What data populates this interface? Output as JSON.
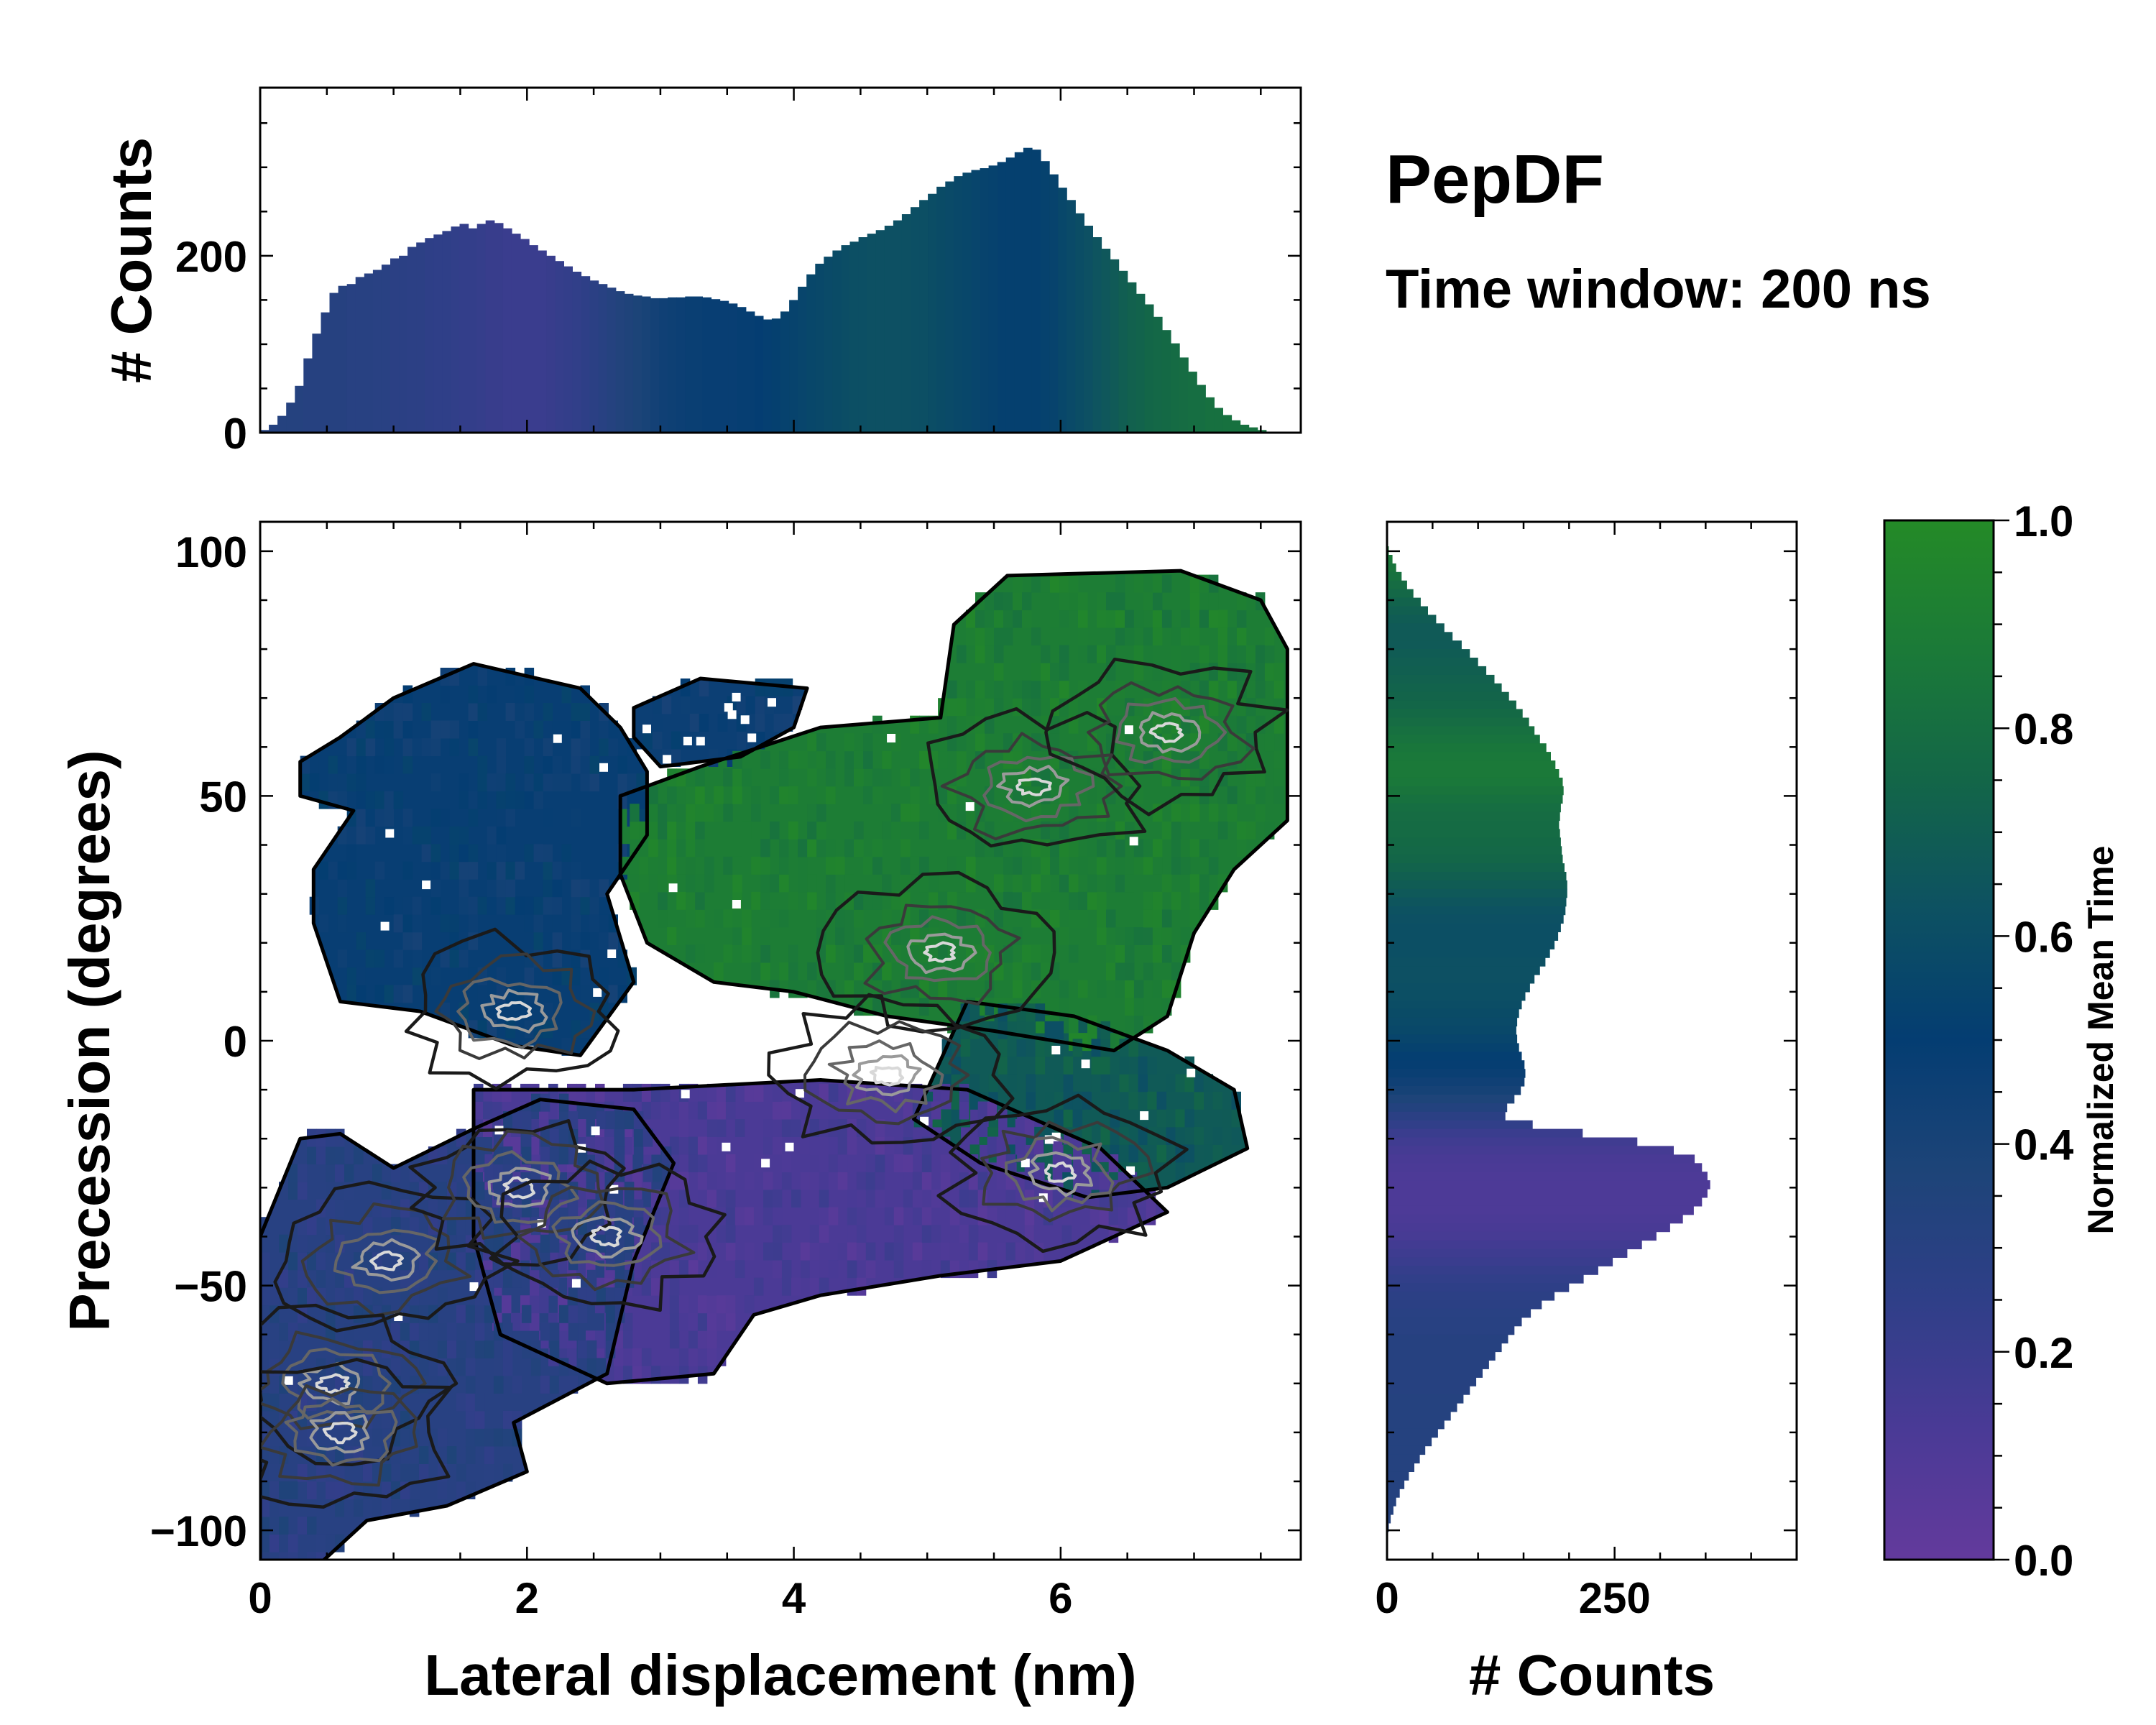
{
  "chart_data": {
    "type": "joint-histogram",
    "title": "PepDF",
    "subtitle": "Time window: 200 ns",
    "colors": {
      "cmap": [
        "#633a9c",
        "#4a3a96",
        "#2f3f88",
        "#1d4478",
        "#043d72",
        "#0d5162",
        "#136648",
        "#1b7a38",
        "#248a27"
      ]
    },
    "main": {
      "type": "2d-histogram",
      "xlabel": "Lateral displacement (nm)",
      "ylabel": "Precession (degrees)",
      "xlim": [
        0,
        7.8
      ],
      "ylim": [
        -106,
        106
      ],
      "xticks": [
        {
          "v": 0,
          "t": "0"
        },
        {
          "v": 2,
          "t": "2"
        },
        {
          "v": 4,
          "t": "4"
        },
        {
          "v": 6,
          "t": "6"
        }
      ],
      "yticks": [
        {
          "v": 100,
          "t": "100"
        },
        {
          "v": 50,
          "t": "50"
        },
        {
          "v": 0,
          "t": "0"
        },
        {
          "v": -50,
          "t": "−50"
        },
        {
          "v": -100,
          "t": "−100"
        }
      ],
      "regions": [
        {
          "name": "blue-upper-left",
          "value": 0.48,
          "polygon": [
            [
              0.3,
              57
            ],
            [
              0.6,
              62
            ],
            [
              1.0,
              70
            ],
            [
              1.6,
              77
            ],
            [
              2.4,
              72
            ],
            [
              2.7,
              64
            ],
            [
              2.9,
              55
            ],
            [
              2.9,
              42
            ],
            [
              2.6,
              30
            ],
            [
              2.8,
              12
            ],
            [
              2.4,
              -3
            ],
            [
              1.9,
              -1
            ],
            [
              1.2,
              6
            ],
            [
              0.6,
              8
            ],
            [
              0.4,
              24
            ],
            [
              0.4,
              35
            ],
            [
              0.7,
              47
            ],
            [
              0.3,
              50
            ]
          ]
        },
        {
          "name": "blue-top-patch",
          "value": 0.46,
          "polygon": [
            [
              2.8,
              68
            ],
            [
              3.3,
              74
            ],
            [
              4.1,
              72
            ],
            [
              4.0,
              64
            ],
            [
              3.6,
              58
            ],
            [
              3.0,
              56
            ],
            [
              2.8,
              62
            ]
          ]
        },
        {
          "name": "green-central",
          "value": 0.9,
          "polygon": [
            [
              2.7,
              50
            ],
            [
              3.3,
              56
            ],
            [
              4.2,
              64
            ],
            [
              5.1,
              66
            ],
            [
              5.2,
              85
            ],
            [
              5.6,
              95
            ],
            [
              6.9,
              96
            ],
            [
              7.5,
              90
            ],
            [
              7.7,
              80
            ],
            [
              7.7,
              45
            ],
            [
              7.3,
              35
            ],
            [
              7.0,
              22
            ],
            [
              6.8,
              5
            ],
            [
              6.4,
              -2
            ],
            [
              5.5,
              2
            ],
            [
              4.7,
              5
            ],
            [
              4.0,
              10
            ],
            [
              3.4,
              12
            ],
            [
              2.9,
              20
            ],
            [
              2.7,
              34
            ]
          ]
        },
        {
          "name": "teal-right",
          "value": 0.68,
          "polygon": [
            [
              5.3,
              8
            ],
            [
              6.1,
              5
            ],
            [
              6.8,
              -2
            ],
            [
              7.3,
              -10
            ],
            [
              7.4,
              -22
            ],
            [
              6.8,
              -30
            ],
            [
              6.2,
              -32
            ],
            [
              5.4,
              -25
            ],
            [
              4.9,
              -16
            ],
            [
              5.1,
              -4
            ]
          ]
        },
        {
          "name": "purple-band",
          "value": 0.12,
          "polygon": [
            [
              1.6,
              -10
            ],
            [
              2.8,
              -10
            ],
            [
              4.2,
              -8
            ],
            [
              5.3,
              -10
            ],
            [
              6.3,
              -22
            ],
            [
              6.8,
              -35
            ],
            [
              6.0,
              -45
            ],
            [
              5.1,
              -48
            ],
            [
              4.2,
              -52
            ],
            [
              3.7,
              -56
            ],
            [
              3.4,
              -68
            ],
            [
              2.6,
              -70
            ],
            [
              1.8,
              -60
            ],
            [
              1.6,
              -40
            ]
          ]
        },
        {
          "name": "navy-lower-left",
          "value": 0.3,
          "polygon": [
            [
              0.3,
              -20
            ],
            [
              0.6,
              -19
            ],
            [
              1.0,
              -26
            ],
            [
              1.6,
              -18
            ],
            [
              2.1,
              -12
            ],
            [
              2.8,
              -14
            ],
            [
              3.1,
              -25
            ],
            [
              2.8,
              -45
            ],
            [
              2.6,
              -68
            ],
            [
              1.9,
              -78
            ],
            [
              2.0,
              -88
            ],
            [
              1.4,
              -95
            ],
            [
              0.8,
              -98
            ],
            [
              0.4,
              -108
            ],
            [
              0,
              -108
            ],
            [
              0,
              -40
            ]
          ]
        }
      ],
      "hotspots": [
        {
          "x": 0.95,
          "y": -45
        },
        {
          "x": 1.95,
          "y": -30
        },
        {
          "x": 2.6,
          "y": -40
        },
        {
          "x": 0.55,
          "y": -70
        },
        {
          "x": 0.6,
          "y": -80
        },
        {
          "x": 5.8,
          "y": 52
        },
        {
          "x": 5.1,
          "y": 18
        },
        {
          "x": 6.8,
          "y": 63
        },
        {
          "x": 6.0,
          "y": -27
        },
        {
          "x": 4.7,
          "y": -7
        },
        {
          "x": 1.9,
          "y": 6
        }
      ]
    },
    "top_hist": {
      "type": "bar",
      "ylabel": "# Counts",
      "xlim": [
        0,
        7.8
      ],
      "ylim": [
        0,
        390
      ],
      "yticks": [
        {
          "v": 0,
          "t": "0"
        },
        {
          "v": 200,
          "t": "200"
        }
      ],
      "bin_centers": [
        0.0325,
        0.0975,
        0.1625,
        0.2275,
        0.2925,
        0.3575,
        0.4225,
        0.4875,
        0.5525,
        0.6175,
        0.6825,
        0.7475,
        0.8125,
        0.8775,
        0.9425,
        1.0075,
        1.0725,
        1.1375,
        1.2025,
        1.2675,
        1.3325,
        1.3975,
        1.4625,
        1.5275,
        1.5925,
        1.6575,
        1.7225,
        1.7875,
        1.8525,
        1.9175,
        1.9825,
        2.0475,
        2.1125,
        2.1775,
        2.2425,
        2.3075,
        2.3725,
        2.4375,
        2.5025,
        2.5675,
        2.6325,
        2.6975,
        2.7625,
        2.8275,
        2.8925,
        2.9575,
        3.0225,
        3.0875,
        3.1525,
        3.2175,
        3.2825,
        3.3475,
        3.4125,
        3.4775,
        3.5425,
        3.6075,
        3.6725,
        3.7375,
        3.8025,
        3.8675,
        3.9325,
        3.9975,
        4.0625,
        4.1275,
        4.1925,
        4.2575,
        4.3225,
        4.3875,
        4.4525,
        4.5175,
        4.5825,
        4.6475,
        4.7125,
        4.7775,
        4.8425,
        4.9075,
        4.9725,
        5.0375,
        5.1025,
        5.1675,
        5.2325,
        5.2975,
        5.3625,
        5.4275,
        5.4925,
        5.5575,
        5.6225,
        5.6875,
        5.7525,
        5.8175,
        5.8825,
        5.9475,
        6.0125,
        6.0775,
        6.1425,
        6.2075,
        6.2725,
        6.3375,
        6.4025,
        6.4675,
        6.5325,
        6.5975,
        6.6625,
        6.7275,
        6.7925,
        6.8575,
        6.9225,
        6.9875,
        7.0525,
        7.1175,
        7.1825,
        7.2475,
        7.3125,
        7.3775,
        7.4425,
        7.5075,
        7.5725,
        7.6375,
        7.7025,
        7.7675
      ],
      "values": [
        3,
        9,
        19,
        34,
        53,
        84,
        112,
        136,
        158,
        166,
        168,
        176,
        180,
        184,
        190,
        197,
        200,
        210,
        215,
        220,
        224,
        228,
        233,
        236,
        231,
        236,
        240,
        237,
        231,
        225,
        219,
        212,
        206,
        200,
        194,
        188,
        182,
        177,
        172,
        168,
        164,
        160,
        157,
        155,
        154,
        152,
        152,
        153,
        153,
        154,
        154,
        153,
        151,
        149,
        146,
        142,
        137,
        132,
        128,
        129,
        137,
        150,
        165,
        179,
        191,
        199,
        206,
        212,
        216,
        221,
        225,
        229,
        234,
        240,
        247,
        255,
        263,
        270,
        278,
        284,
        290,
        294,
        297,
        299,
        302,
        306,
        311,
        317,
        322,
        320,
        307,
        292,
        277,
        263,
        248,
        234,
        221,
        208,
        196,
        183,
        170,
        157,
        145,
        131,
        116,
        101,
        85,
        69,
        54,
        40,
        28,
        20,
        14,
        9,
        6,
        3,
        1,
        0
      ],
      "colors": [
        0.32,
        0.32,
        0.32,
        0.32,
        0.32,
        0.31,
        0.31,
        0.31,
        0.31,
        0.31,
        0.3,
        0.3,
        0.3,
        0.29,
        0.29,
        0.28,
        0.28,
        0.27,
        0.27,
        0.26,
        0.25,
        0.25,
        0.24,
        0.23,
        0.23,
        0.22,
        0.21,
        0.21,
        0.2,
        0.2,
        0.2,
        0.2,
        0.2,
        0.21,
        0.22,
        0.23,
        0.24,
        0.26,
        0.28,
        0.3,
        0.32,
        0.34,
        0.36,
        0.38,
        0.4,
        0.42,
        0.44,
        0.45,
        0.46,
        0.47,
        0.47,
        0.48,
        0.48,
        0.48,
        0.48,
        0.49,
        0.49,
        0.5,
        0.51,
        0.52,
        0.53,
        0.54,
        0.55,
        0.56,
        0.57,
        0.58,
        0.59,
        0.6,
        0.61,
        0.61,
        0.62,
        0.62,
        0.62,
        0.62,
        0.62,
        0.61,
        0.61,
        0.6,
        0.59,
        0.58,
        0.57,
        0.56,
        0.55,
        0.54,
        0.53,
        0.52,
        0.52,
        0.52,
        0.52,
        0.52,
        0.53,
        0.54,
        0.56,
        0.58,
        0.6,
        0.62,
        0.64,
        0.66,
        0.68,
        0.7,
        0.72,
        0.73,
        0.75,
        0.76,
        0.77,
        0.78,
        0.79,
        0.8,
        0.8,
        0.81,
        0.81,
        0.82,
        0.82,
        0.82,
        0.82,
        0.82,
        0.82,
        0.82,
        0.82,
        0.82
      ]
    },
    "right_hist": {
      "type": "barh",
      "xlabel": "# Counts",
      "xlim": [
        0,
        450
      ],
      "ylim": [
        -106,
        106
      ],
      "xticks": [
        {
          "v": 0,
          "t": "0"
        },
        {
          "v": 250,
          "t": "250"
        }
      ],
      "bin_centers": [
        100.125,
        98.375,
        96.625,
        94.875,
        93.125,
        91.375,
        89.625,
        87.875,
        86.125,
        84.375,
        82.625,
        80.875,
        79.125,
        77.375,
        75.625,
        73.875,
        72.125,
        70.375,
        68.625,
        66.875,
        65.125,
        63.375,
        61.625,
        59.875,
        58.125,
        56.375,
        54.625,
        52.875,
        51.125,
        49.375,
        47.625,
        45.875,
        44.125,
        42.375,
        40.625,
        38.875,
        37.125,
        35.375,
        33.625,
        31.875,
        30.125,
        28.375,
        26.625,
        24.875,
        23.125,
        21.375,
        19.625,
        17.875,
        16.125,
        14.375,
        12.625,
        10.875,
        9.125,
        7.375,
        5.625,
        3.875,
        2.125,
        0.375,
        -1.375,
        -3.125,
        -4.875,
        -6.625,
        -8.375,
        -10.125,
        -11.875,
        -13.625,
        -15.375,
        -17.125,
        -18.875,
        -20.625,
        -22.375,
        -24.125,
        -25.875,
        -27.625,
        -29.375,
        -31.125,
        -32.875,
        -34.625,
        -36.375,
        -38.125,
        -39.875,
        -41.625,
        -43.375,
        -45.125,
        -46.875,
        -48.625,
        -50.375,
        -52.125,
        -53.875,
        -55.625,
        -57.375,
        -59.125,
        -60.875,
        -62.625,
        -64.375,
        -66.125,
        -67.875,
        -69.625,
        -71.375,
        -73.125,
        -74.875,
        -76.625,
        -78.375,
        -80.125,
        -81.875,
        -83.625,
        -85.375,
        -87.125,
        -88.875,
        -90.625,
        -92.375,
        -94.125,
        -95.875,
        -97.625,
        -99.375
      ],
      "values": [
        2,
        6,
        10,
        16,
        22,
        29,
        37,
        45,
        54,
        63,
        72,
        82,
        91,
        100,
        109,
        118,
        126,
        134,
        142,
        149,
        156,
        162,
        168,
        175,
        180,
        185,
        189,
        193,
        194,
        193,
        191,
        190,
        189,
        190,
        191,
        192,
        193,
        195,
        197,
        198,
        198,
        197,
        196,
        194,
        191,
        188,
        184,
        179,
        174,
        168,
        162,
        157,
        152,
        148,
        145,
        143,
        142,
        143,
        145,
        148,
        151,
        152,
        151,
        147,
        140,
        132,
        130,
        160,
        215,
        275,
        315,
        338,
        346,
        352,
        355,
        352,
        346,
        337,
        325,
        311,
        296,
        280,
        264,
        248,
        232,
        216,
        200,
        184,
        170,
        158,
        148,
        140,
        133,
        126,
        119,
        112,
        105,
        98,
        91,
        84,
        77,
        70,
        63,
        56,
        49,
        42,
        36,
        30,
        24,
        19,
        14,
        10,
        7,
        4,
        2
      ],
      "colors": [
        0.88,
        0.86,
        0.84,
        0.82,
        0.79,
        0.76,
        0.73,
        0.71,
        0.69,
        0.68,
        0.68,
        0.68,
        0.69,
        0.7,
        0.71,
        0.72,
        0.73,
        0.74,
        0.75,
        0.77,
        0.79,
        0.81,
        0.83,
        0.85,
        0.86,
        0.87,
        0.87,
        0.86,
        0.84,
        0.82,
        0.8,
        0.79,
        0.78,
        0.78,
        0.77,
        0.76,
        0.75,
        0.73,
        0.71,
        0.69,
        0.67,
        0.65,
        0.63,
        0.62,
        0.61,
        0.61,
        0.61,
        0.61,
        0.62,
        0.62,
        0.62,
        0.61,
        0.61,
        0.6,
        0.59,
        0.58,
        0.57,
        0.55,
        0.53,
        0.51,
        0.49,
        0.47,
        0.44,
        0.41,
        0.37,
        0.33,
        0.28,
        0.24,
        0.2,
        0.17,
        0.15,
        0.13,
        0.12,
        0.11,
        0.11,
        0.11,
        0.11,
        0.11,
        0.12,
        0.13,
        0.14,
        0.16,
        0.18,
        0.2,
        0.22,
        0.24,
        0.26,
        0.27,
        0.28,
        0.29,
        0.3,
        0.3,
        0.31,
        0.31,
        0.31,
        0.31,
        0.31,
        0.31,
        0.31,
        0.32,
        0.32,
        0.32,
        0.32,
        0.32,
        0.32,
        0.32,
        0.32,
        0.32,
        0.32,
        0.32,
        0.32,
        0.32,
        0.32,
        0.32,
        0.32
      ]
    },
    "colorbar": {
      "label": "Normalized Mean Time",
      "range": [
        0,
        1
      ],
      "ticks": [
        {
          "v": 0,
          "t": "0.0"
        },
        {
          "v": 0.2,
          "t": "0.2"
        },
        {
          "v": 0.4,
          "t": "0.4"
        },
        {
          "v": 0.6,
          "t": "0.6"
        },
        {
          "v": 0.8,
          "t": "0.8"
        },
        {
          "v": 1,
          "t": "1.0"
        }
      ]
    }
  }
}
